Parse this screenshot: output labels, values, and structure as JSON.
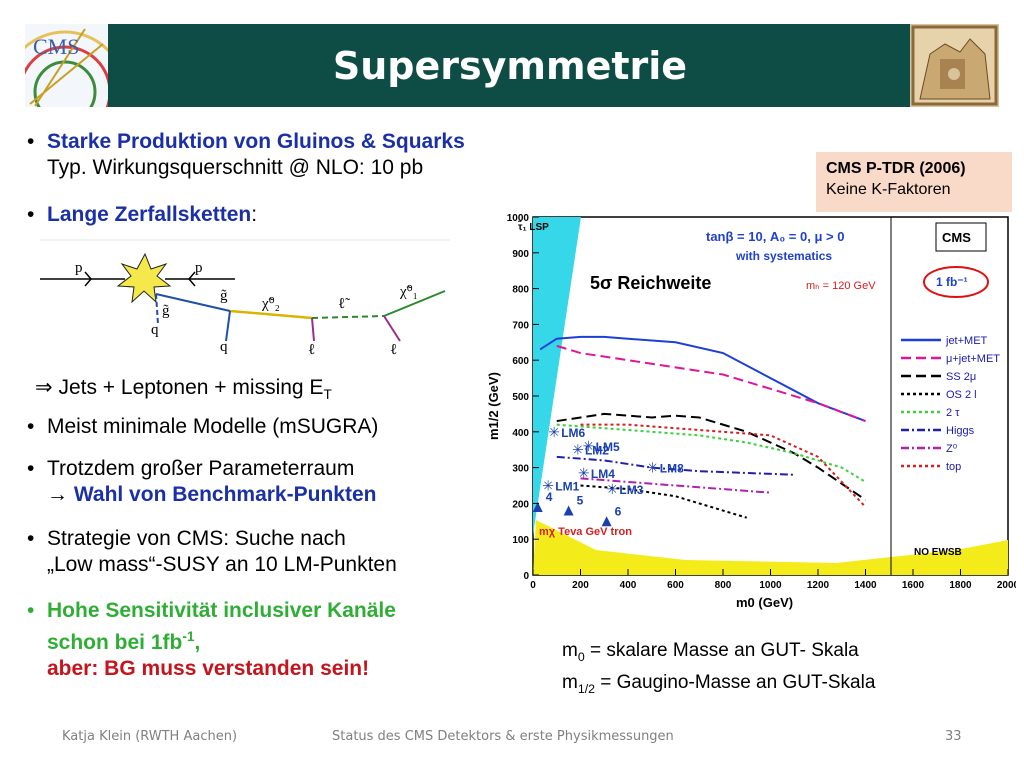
{
  "title": "Supersymmetrie",
  "logo_left_text": "CMS",
  "bullets": {
    "b1_line1": "Starke Produktion von Gluinos & Squarks",
    "b1_line2": "Typ. Wirkungsquerschnitt @ NLO: 10 pb",
    "b2_text": "Lange Zerfallsketten",
    "b2_colon": ":",
    "b3_text": "Jets + Leptonen + missing E",
    "b3_sub": "T",
    "b4": "Meist  minimale Modelle (mSUGRA)",
    "b5_line1": "Trotzdem großer Parameterraum",
    "b5_line2": "Wahl von Benchmark-Punkten",
    "b6_line1": "Strategie von CMS: Suche nach",
    "b6_line2": "„Low mass“-SUSY an 10 LM-Punkten",
    "b7_line1": "Hohe Sensitivität inclusiver Kanäle",
    "b7_line2a": "schon bei 1fb",
    "b7_line2sup": "-1",
    "b7_line2b": ",",
    "b7_line3": "aber: BG muss verstanden sein!"
  },
  "diagram": {
    "p1": "p",
    "p2": "p",
    "g_tilde_a": "g̃",
    "g_tilde_b": "g̃",
    "q1": "q",
    "q2": "q",
    "chi2": "χ̃⁰₂",
    "ell_tilde": "ℓ̃",
    "ell1": "ℓ",
    "ell2": "ℓ",
    "chi1": "χ̃⁰₁"
  },
  "note": {
    "line1": "CMS P-TDR (2006)",
    "line2": "Keine K-Faktoren"
  },
  "chart_data": {
    "type": "line",
    "xlabel": "m0 (GeV)",
    "ylabel": "m1/2 (GeV)",
    "xlim": [
      0,
      2000
    ],
    "ylim": [
      0,
      1000
    ],
    "x_ticks": [
      "0",
      "200",
      "400",
      "600",
      "800",
      "1000",
      "1200",
      "1400",
      "1600",
      "1800",
      "2000"
    ],
    "y_ticks": [
      "0",
      "100",
      "200",
      "300",
      "400",
      "500",
      "600",
      "700",
      "800",
      "900",
      "1000"
    ],
    "annotations": {
      "lsp": "τ̃₁ LSP",
      "params_line1": "tanβ = 10, A₀ = 0, μ > 0",
      "params_line2": "with systematics",
      "reach": "5σ Reichweite",
      "mh": "mₕ = 120 GeV",
      "cms": "CMS",
      "lumi": "1 fb⁻¹",
      "no_ewsb": "NO EWSB",
      "tevatron": "mχ Teva GeV tron"
    },
    "benchmarks": [
      {
        "label": "LM1",
        "x": 60,
        "y": 250
      },
      {
        "label": "LM2",
        "x": 185,
        "y": 350
      },
      {
        "label": "LM3",
        "x": 330,
        "y": 240
      },
      {
        "label": "LM4",
        "x": 210,
        "y": 285
      },
      {
        "label": "LM5",
        "x": 230,
        "y": 360
      },
      {
        "label": "LM6",
        "x": 85,
        "y": 400
      },
      {
        "label": "LM8",
        "x": 500,
        "y": 300
      },
      {
        "label": "4",
        "x": 20,
        "y": 190
      },
      {
        "label": "5",
        "x": 150,
        "y": 180
      },
      {
        "label": "6",
        "x": 310,
        "y": 150
      }
    ],
    "series": [
      {
        "name": "jet+MET",
        "color": "#1c3fd6",
        "style": "solid",
        "x": [
          30,
          100,
          200,
          300,
          400,
          600,
          800,
          1000,
          1200,
          1400
        ],
        "y": [
          630,
          660,
          665,
          665,
          660,
          650,
          620,
          550,
          480,
          430
        ]
      },
      {
        "name": "μ+jet+MET",
        "color": "#e0149a",
        "style": "dash",
        "x": [
          100,
          200,
          400,
          600,
          800,
          1000,
          1200,
          1400
        ],
        "y": [
          640,
          620,
          600,
          580,
          560,
          520,
          480,
          430
        ]
      },
      {
        "name": "SS 2μ",
        "color": "#000000",
        "style": "dash",
        "x": [
          100,
          200,
          300,
          400,
          500,
          600,
          700,
          800,
          900,
          1000,
          1100,
          1200,
          1400
        ],
        "y": [
          430,
          440,
          450,
          445,
          440,
          445,
          440,
          420,
          400,
          370,
          340,
          300,
          210
        ]
      },
      {
        "name": "OS 2 l",
        "color": "#000000",
        "style": "dot",
        "x": [
          200,
          400,
          600,
          700,
          800,
          900
        ],
        "y": [
          250,
          240,
          220,
          200,
          180,
          160
        ]
      },
      {
        "name": "2 τ",
        "color": "#3ad23a",
        "style": "dot",
        "x": [
          100,
          300,
          500,
          700,
          900,
          1100,
          1300,
          1400
        ],
        "y": [
          420,
          410,
          400,
          390,
          370,
          340,
          300,
          260
        ]
      },
      {
        "name": "Higgs",
        "color": "#2020b0",
        "style": "dashdot",
        "x": [
          100,
          300,
          500,
          700,
          900,
          1100
        ],
        "y": [
          330,
          320,
          300,
          290,
          285,
          280
        ]
      },
      {
        "name": "Z⁰",
        "color": "#b020b0",
        "style": "dashdot",
        "x": [
          200,
          400,
          600,
          800,
          1000
        ],
        "y": [
          270,
          260,
          250,
          240,
          230
        ]
      },
      {
        "name": "top",
        "color": "#d42020",
        "style": "dot",
        "x": [
          200,
          400,
          600,
          800,
          1000,
          1200,
          1300,
          1400
        ],
        "y": [
          420,
          420,
          410,
          400,
          390,
          330,
          260,
          190
        ]
      }
    ]
  },
  "defs": {
    "line1_a": "m",
    "line1_sub": "0",
    "line1_b": " = skalare Masse an GUT- Skala",
    "line2_a": "m",
    "line2_sub": "1/2",
    "line2_b": " = Gaugino-Masse an GUT-Skala"
  },
  "footer": {
    "author": "Katja Klein (RWTH Aachen)",
    "talk": "Status des CMS Detektors & erste Physikmessungen",
    "page": "33"
  }
}
